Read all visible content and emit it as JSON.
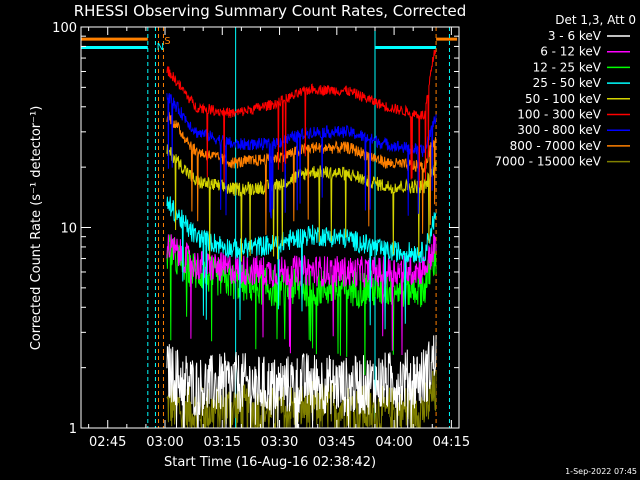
{
  "chart_data": {
    "type": "line",
    "title": "RHESSI Observing Summary Count Rates, Corrected",
    "xlabel": "Start Time (16-Aug-16 02:38:42)",
    "ylabel": "Corrected Count Rate (s⁻¹ detector⁻¹)",
    "yscale": "log",
    "ylim": [
      1,
      100
    ],
    "xlim_minutes_after_0238": [
      0,
      99
    ],
    "x_tick_labels": [
      "02:45",
      "03:00",
      "03:15",
      "03:30",
      "03:45",
      "04:00",
      "04:15"
    ],
    "x_tick_minutes": [
      7,
      22,
      37,
      52,
      67,
      82,
      97
    ],
    "y_tick_labels": [
      "1",
      "10",
      "100"
    ],
    "y_tick_values": [
      1,
      10,
      100
    ],
    "legend_title": "Det 1,3, Att 0",
    "legend_position": "right-outside",
    "flag_labels": [
      "S",
      "N"
    ],
    "data_start_minute": 22.5,
    "data_end_minute": 93,
    "series": [
      {
        "name": "3 - 6 keV",
        "color": "#ffffff",
        "x_minutes": [
          23,
          30,
          40,
          50,
          60,
          70,
          80,
          90,
          92.5
        ],
        "values": [
          1.9,
          1.6,
          1.7,
          1.6,
          1.7,
          1.6,
          1.7,
          1.8,
          2.2
        ]
      },
      {
        "name": "6 - 12 keV",
        "color": "#ff00ff",
        "x_minutes": [
          23,
          30,
          40,
          50,
          60,
          70,
          80,
          90,
          92.5
        ],
        "values": [
          8,
          6.5,
          6.2,
          6.0,
          6.1,
          6.0,
          6.0,
          6.2,
          8
        ]
      },
      {
        "name": "12 - 25 keV",
        "color": "#00ff00",
        "x_minutes": [
          23,
          30,
          40,
          50,
          60,
          70,
          80,
          90,
          92.5
        ],
        "values": [
          7.5,
          6.0,
          5.4,
          5.0,
          5.0,
          5.0,
          4.9,
          5.0,
          7
        ]
      },
      {
        "name": "25 - 50 keV",
        "color": "#00ffff",
        "x_minutes": [
          23,
          30,
          40,
          50,
          60,
          70,
          80,
          90,
          92.5
        ],
        "values": [
          13,
          9,
          7.8,
          8.2,
          9.2,
          8.8,
          7.6,
          7.5,
          11
        ]
      },
      {
        "name": "50 - 100 keV",
        "color": "#d4d400",
        "x_minutes": [
          23,
          30,
          40,
          50,
          60,
          70,
          80,
          90,
          92.5
        ],
        "values": [
          24,
          17,
          15.5,
          16,
          19,
          18.5,
          16,
          16,
          20
        ]
      },
      {
        "name": "100 - 300 keV",
        "color": "#ff0000",
        "x_minutes": [
          23,
          30,
          40,
          50,
          60,
          70,
          80,
          90,
          92.5
        ],
        "values": [
          60,
          40,
          37,
          41,
          49,
          48,
          40,
          36,
          75
        ]
      },
      {
        "name": "300 - 800 keV",
        "color": "#0000ff",
        "x_minutes": [
          23,
          30,
          40,
          50,
          60,
          70,
          80,
          90,
          92.5
        ],
        "values": [
          45,
          30,
          26,
          26,
          30,
          30,
          26,
          24,
          35
        ]
      },
      {
        "name": "800 - 7000 keV",
        "color": "#ff8000",
        "x_minutes": [
          23,
          30,
          40,
          50,
          60,
          70,
          80,
          90,
          92.5
        ],
        "values": [
          36,
          24,
          21,
          22,
          25,
          25,
          21,
          20,
          28
        ]
      },
      {
        "name": "7000 - 15000 keV",
        "color": "#808000",
        "x_minutes": [
          23,
          30,
          40,
          50,
          60,
          70,
          80,
          90,
          92.5
        ],
        "values": [
          1.3,
          1.2,
          1.25,
          1.2,
          1.3,
          1.25,
          1.2,
          1.25,
          1.5
        ]
      }
    ]
  },
  "footer": {
    "timestamp": "1-Sep-2022 07:45"
  }
}
